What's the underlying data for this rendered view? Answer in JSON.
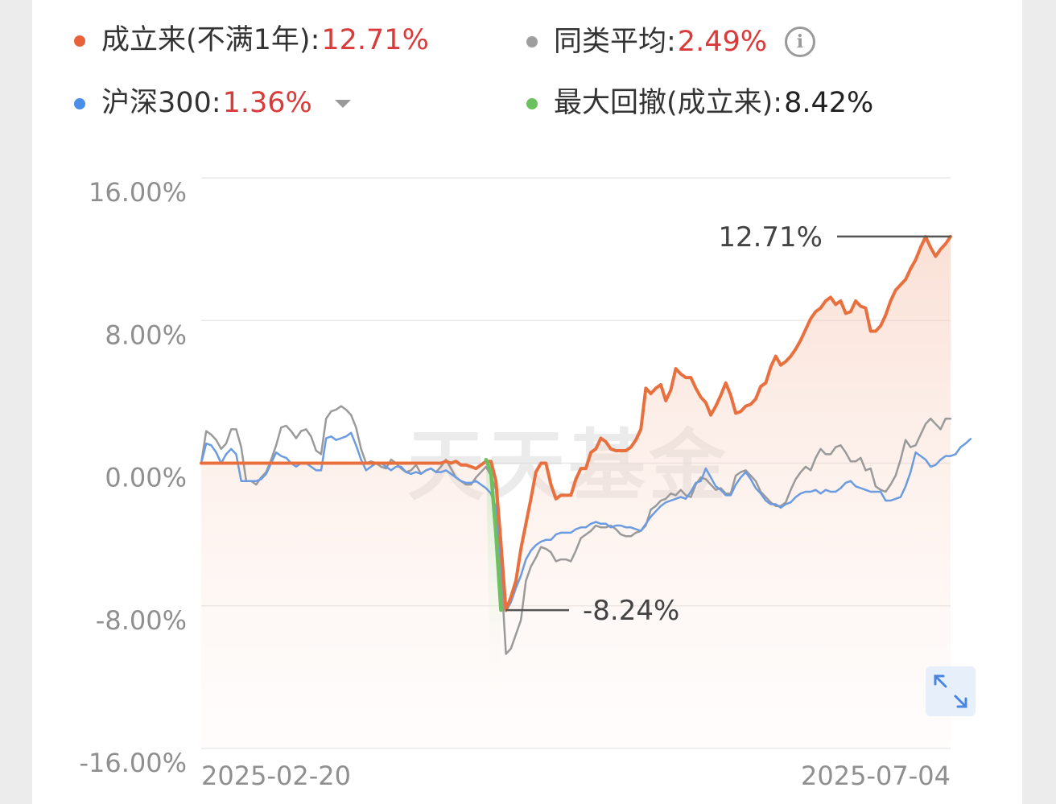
{
  "legend": {
    "fund": {
      "label": "成立来(不满1年):",
      "value": "12.71%",
      "dot_color": "#e8613a",
      "value_color": "#d93a3a"
    },
    "peer": {
      "label": "同类平均:",
      "value": "2.49%",
      "dot_color": "#9e9e9e",
      "value_color": "#d93a3a"
    },
    "index": {
      "label": "沪深300:",
      "value": "1.36%",
      "dot_color": "#4a8ee8",
      "value_color": "#d93a3a"
    },
    "drawdown": {
      "label": "最大回撤(成立来):",
      "value": "8.42%",
      "dot_color": "#6cc15f",
      "value_color": "#222222"
    }
  },
  "icons": {
    "info": "info-icon",
    "dropdown": "chevron-down-icon",
    "expand": "expand-icon"
  },
  "info_glyph": "i",
  "watermark": "天天基金",
  "colors": {
    "fund": "#e8703e",
    "peer": "#9a9a9a",
    "index": "#6b9be0",
    "drawdown": "#6cc15f",
    "grid": "#e8e8e8",
    "ref_line": "#555555"
  },
  "chart_data": {
    "type": "line",
    "y_ticks": [
      "16.00%",
      "8.00%",
      "0.00%",
      "-8.00%",
      "-16.00%"
    ],
    "x_ticks": [
      "2025-02-20",
      "2025-07-04"
    ],
    "ylim": [
      -16,
      16
    ],
    "x_range": [
      "2025-02-20",
      "2025-07-04"
    ],
    "grid": true,
    "annotations": {
      "max": "12.71%",
      "min": "-8.24%"
    },
    "max_value": 12.71,
    "min_value": -8.24,
    "series": [
      {
        "name": "成立来(不满1年)",
        "color": "#e8703e",
        "fill": true,
        "values": [
          0.0,
          0.0,
          0.0,
          0.0,
          0.0,
          0.0,
          0.0,
          0.0,
          0.0,
          0.0,
          0.0,
          0.0,
          0.0,
          0.0,
          0.0,
          0.0,
          0.0,
          0.0,
          0.0,
          0.0,
          0.0,
          0.0,
          0.0,
          0.0,
          0.0,
          0.0,
          0.0,
          0.0,
          0.0,
          0.0,
          0.0,
          0.0,
          0.0,
          0.0,
          0.0,
          0.0,
          0.0,
          0.0,
          0.0,
          0.0,
          0.0,
          0.0,
          0.0,
          0.0,
          0.0,
          0.0,
          0.0,
          0.0,
          0.0,
          0.1,
          0.0,
          0.1,
          -0.1,
          -0.1,
          -0.2,
          -0.3,
          -0.1,
          0.1,
          0.1,
          -1.0,
          -4.5,
          -8.24,
          -7.5,
          -6.6,
          -4.8,
          -3.4,
          -2.0,
          -0.5,
          0.0,
          0.0,
          -1.2,
          -2.0,
          -1.8,
          -1.8,
          -1.8,
          -0.9,
          -0.3,
          -0.3,
          0.6,
          0.8,
          1.4,
          1.2,
          0.8,
          0.7,
          0.7,
          0.7,
          0.9,
          1.3,
          1.9,
          4.2,
          3.9,
          4.2,
          4.4,
          3.5,
          4.1,
          5.3,
          5.0,
          4.8,
          4.8,
          4.2,
          3.7,
          3.4,
          2.7,
          3.2,
          3.8,
          4.5,
          3.8,
          2.8,
          2.9,
          3.2,
          3.3,
          3.6,
          4.3,
          4.5,
          5.4,
          6.0,
          5.5,
          5.7,
          6.0,
          6.4,
          6.9,
          7.5,
          8.1,
          8.5,
          8.7,
          9.1,
          9.3,
          8.9,
          9.1,
          8.4,
          8.5,
          9.1,
          8.8,
          8.7,
          7.4,
          7.4,
          7.7,
          8.3,
          9.1,
          9.7,
          10.0,
          10.3,
          10.9,
          11.4,
          12.1,
          12.7,
          12.1,
          11.6,
          12.0,
          12.3,
          12.71
        ]
      },
      {
        "name": "同类平均",
        "color": "#9a9a9a",
        "fill": false,
        "values": [
          0.0,
          1.8,
          1.6,
          1.3,
          0.8,
          1.1,
          1.9,
          1.9,
          0.9,
          -1.0,
          -1.0,
          -1.2,
          -0.8,
          -0.5,
          0.2,
          1.0,
          2.0,
          2.1,
          1.8,
          1.4,
          1.8,
          1.9,
          1.5,
          0.7,
          0.5,
          2.5,
          2.9,
          3.0,
          3.2,
          3.0,
          2.7,
          2.0,
          0.8,
          0.0,
          0.1,
          0.0,
          -0.2,
          -0.3,
          0.2,
          0.0,
          -0.3,
          -0.5,
          -0.4,
          -0.1,
          -0.6,
          -0.4,
          -0.3,
          -0.5,
          -0.2,
          0.2,
          -0.3,
          -0.8,
          -1.0,
          -1.2,
          -1.2,
          -0.8,
          -0.5,
          -0.2,
          -0.7,
          -1.5,
          -6.0,
          -10.7,
          -10.4,
          -9.6,
          -8.8,
          -6.6,
          -5.8,
          -5.3,
          -4.7,
          -4.8,
          -5.0,
          -5.5,
          -5.4,
          -5.4,
          -5.5,
          -4.9,
          -4.2,
          -4.0,
          -3.8,
          -3.5,
          -3.6,
          -3.6,
          -3.5,
          -3.7,
          -4.0,
          -4.1,
          -4.1,
          -3.9,
          -3.8,
          -3.5,
          -2.6,
          -2.4,
          -2.1,
          -2.0,
          -1.7,
          -1.8,
          -1.5,
          -1.8,
          -1.9,
          -1.2,
          -0.8,
          -0.9,
          -1.2,
          -1.5,
          -1.4,
          -1.7,
          -1.7,
          -0.7,
          -0.5,
          -0.4,
          -0.7,
          -1.0,
          -1.6,
          -1.9,
          -2.2,
          -2.4,
          -2.4,
          -2.2,
          -1.5,
          -0.9,
          -0.5,
          -0.2,
          -0.4,
          0.3,
          0.8,
          0.5,
          0.5,
          0.9,
          1.0,
          0.6,
          0.1,
          0.1,
          0.3,
          -0.4,
          -0.3,
          -1.3,
          -1.5,
          -1.6,
          -1.2,
          -0.7,
          0.2,
          1.3,
          0.9,
          1.0,
          1.6,
          2.2,
          2.5,
          2.2,
          1.9,
          2.5,
          2.49
        ]
      },
      {
        "name": "沪深300",
        "color": "#6b9be0",
        "fill": false,
        "values": [
          0.0,
          1.1,
          1.0,
          0.6,
          0.0,
          0.5,
          0.8,
          0.5,
          -1.0,
          -1.0,
          -1.0,
          -1.0,
          -0.9,
          -0.6,
          0.0,
          0.6,
          0.4,
          0.3,
          0.0,
          -0.2,
          0.0,
          0.0,
          -0.2,
          -0.4,
          -0.4,
          1.4,
          1.5,
          1.3,
          1.4,
          1.5,
          1.7,
          1.0,
          0.2,
          -0.4,
          -0.2,
          0.0,
          0.0,
          -0.2,
          -0.4,
          -0.2,
          -0.2,
          -0.5,
          -0.6,
          -0.5,
          -0.6,
          -0.4,
          -0.3,
          -0.5,
          -0.5,
          -0.4,
          -0.6,
          -0.8,
          -1.0,
          -1.1,
          -1.1,
          -1.0,
          -1.2,
          -1.4,
          -1.7,
          -2.5,
          -5.5,
          -8.3,
          -7.8,
          -7.0,
          -6.3,
          -5.4,
          -4.9,
          -4.6,
          -4.4,
          -4.3,
          -4.3,
          -4.0,
          -3.9,
          -3.9,
          -3.9,
          -3.7,
          -3.6,
          -3.6,
          -3.4,
          -3.3,
          -3.4,
          -3.4,
          -3.6,
          -3.5,
          -3.5,
          -3.6,
          -3.6,
          -3.7,
          -3.8,
          -3.4,
          -3.0,
          -2.7,
          -2.4,
          -2.2,
          -2.1,
          -2.0,
          -1.9,
          -2.0,
          -1.6,
          -1.1,
          -1.0,
          -0.3,
          -0.8,
          -1.3,
          -1.5,
          -1.8,
          -1.8,
          -1.2,
          -0.8,
          -0.5,
          -0.9,
          -1.4,
          -1.7,
          -2.1,
          -2.3,
          -2.3,
          -2.5,
          -2.3,
          -2.2,
          -1.9,
          -1.7,
          -1.6,
          -1.6,
          -1.5,
          -1.7,
          -1.5,
          -1.6,
          -1.6,
          -1.4,
          -1.1,
          -1.0,
          -1.3,
          -1.4,
          -1.5,
          -1.6,
          -1.6,
          -1.6,
          -2.1,
          -2.1,
          -2.0,
          -1.9,
          -1.3,
          -0.5,
          0.6,
          0.4,
          0.2,
          -0.2,
          -0.1,
          0.2,
          0.4,
          0.4,
          0.5,
          0.9,
          1.1,
          1.36
        ]
      },
      {
        "name": "最大回撤(成立来)",
        "color": "#6cc15f",
        "fill": false,
        "start_index": 57,
        "values": [
          0.2,
          -0.5,
          -4.0,
          -8.24
        ]
      }
    ]
  }
}
